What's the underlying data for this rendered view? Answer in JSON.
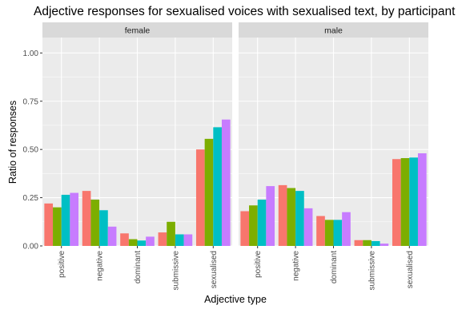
{
  "chart_data": {
    "type": "bar",
    "title": "Adjective responses for sexualised voices with sexualised text, by participant",
    "xlabel": "Adjective type",
    "ylabel": "Ratio of responses",
    "ylim": [
      0,
      1.08
    ],
    "y_ticks": [
      0,
      0.25,
      0.5,
      0.75,
      1
    ],
    "y_tick_labels": [
      "0.00",
      "0.25",
      "0.50",
      "0.75",
      "1.00"
    ],
    "categories": [
      "positive",
      "negative",
      "dominant",
      "submissive",
      "sexualised"
    ],
    "series_colors": [
      "#F8766D",
      "#7CAE00",
      "#00BFC4",
      "#C77CFF"
    ],
    "grid": true,
    "legend": "none",
    "panels": [
      {
        "label": "female",
        "values": [
          [
            0.22,
            0.2,
            0.265,
            0.275
          ],
          [
            0.285,
            0.24,
            0.185,
            0.1
          ],
          [
            0.065,
            0.035,
            0.028,
            0.048
          ],
          [
            0.07,
            0.125,
            0.06,
            0.06
          ],
          [
            0.5,
            0.555,
            0.615,
            0.655
          ]
        ]
      },
      {
        "label": "male",
        "values": [
          [
            0.18,
            0.21,
            0.24,
            0.31
          ],
          [
            0.315,
            0.3,
            0.285,
            0.195
          ],
          [
            0.155,
            0.135,
            0.135,
            0.175
          ],
          [
            0.03,
            0.03,
            0.025,
            0.012
          ],
          [
            0.45,
            0.455,
            0.458,
            0.48
          ]
        ]
      }
    ]
  }
}
